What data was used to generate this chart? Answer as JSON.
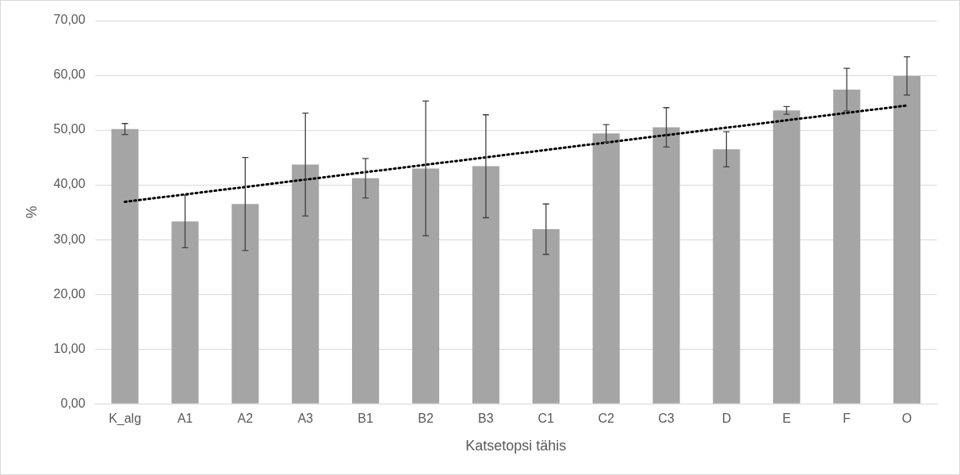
{
  "chart_data": {
    "type": "bar",
    "xlabel": "Katsetopsi tähis",
    "ylabel": "%",
    "categories": [
      "K_alg",
      "A1",
      "A2",
      "A3",
      "B1",
      "B2",
      "B3",
      "C1",
      "C2",
      "C3",
      "D",
      "E",
      "F",
      "O"
    ],
    "series": [
      {
        "color": "#a5a5a5",
        "values": [
          50.2,
          33.3,
          36.5,
          43.7,
          41.2,
          43.0,
          43.4,
          31.9,
          49.4,
          50.5,
          46.5,
          53.6,
          57.4,
          59.9
        ],
        "errors": [
          1.0,
          4.8,
          8.5,
          9.4,
          3.6,
          12.3,
          9.4,
          4.6,
          1.6,
          3.6,
          3.2,
          0.7,
          3.9,
          3.5
        ]
      },
      {
        "type": "line",
        "color": "#000000",
        "line_style": "dotted",
        "marker": "none",
        "x": [
          "K_alg",
          "O"
        ],
        "values": [
          36.9,
          54.5
        ]
      }
    ],
    "ylim": [
      0,
      70
    ],
    "yticks": [
      {
        "value": 0,
        "label": "0,00"
      },
      {
        "value": 10,
        "label": "10,00"
      },
      {
        "value": 20,
        "label": "20,00"
      },
      {
        "value": 30,
        "label": "30,00"
      },
      {
        "value": 40,
        "label": "40,00"
      },
      {
        "value": 50,
        "label": "50,00"
      },
      {
        "value": 60,
        "label": "60,00"
      },
      {
        "value": 70,
        "label": "70,00"
      }
    ],
    "grid": "y",
    "legend": false
  }
}
